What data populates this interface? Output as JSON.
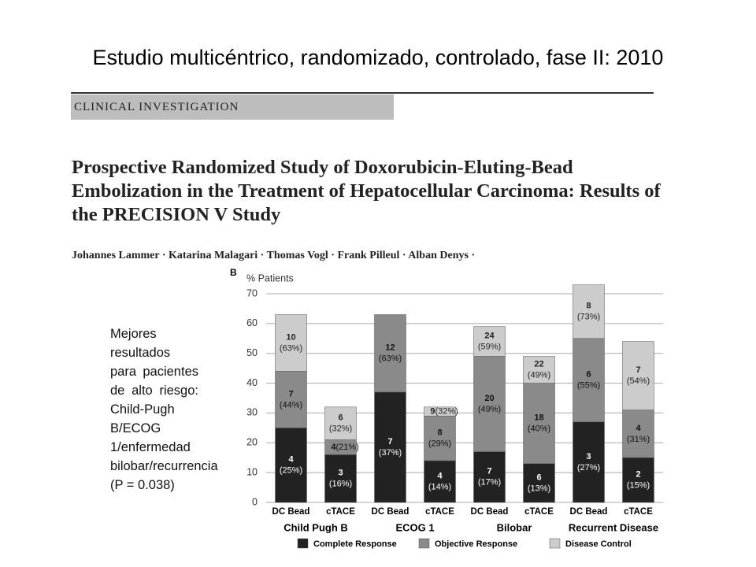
{
  "slide_title": "Estudio multicéntrico, randomizado, controlado, fase II: 2010",
  "paper": {
    "kicker": "CLINICAL INVESTIGATION",
    "title": "Prospective Randomized Study of Doxorubicin-Eluting-Bead Embolization in the Treatment of Hepatocellular Carcinoma: Results of the PRECISION V Study",
    "authors": "Johannes Lammer · Katarina Malagari · Thomas Vogl · Frank Pilleul · Alban Denys ·"
  },
  "note": "Mejores resultados para pacientes de alto riesgo: Child-Pugh B/ECOG 1/enfermedad bilobar/recurrencia (P = 0.038)",
  "chart_data": {
    "type": "stacked_bar",
    "panel_label": "B",
    "ylabel": "% Patients",
    "categories": [
      "DC Bead",
      "cTACE",
      "DC Bead",
      "cTACE",
      "DC Bead",
      "cTACE",
      "DC Bead",
      "cTACE"
    ],
    "group_labels": [
      "Child Pugh B",
      "ECOG 1",
      "Bilobar",
      "Recurrent Disease"
    ],
    "ylim": [
      0,
      70
    ],
    "yticks": [
      0,
      10,
      20,
      30,
      40,
      50,
      60,
      70
    ],
    "grid": true,
    "series": [
      {
        "name": "Complete Response",
        "color": "#222222",
        "values": [
          25,
          16,
          37,
          14,
          17,
          13,
          27,
          15
        ],
        "counts": [
          4,
          3,
          7,
          4,
          7,
          6,
          3,
          2
        ],
        "percent_labels": [
          "(25%)",
          "(16%)",
          "(37%)",
          "(14%)",
          "(17%)",
          "(13%)",
          "(27%)",
          "(15%)"
        ]
      },
      {
        "name": "Objective Response",
        "color": "#8a8a8a",
        "values": [
          19,
          5,
          26,
          15,
          32,
          27,
          28,
          16
        ],
        "counts": [
          7,
          4,
          12,
          8,
          20,
          18,
          6,
          4
        ],
        "percent_labels": [
          "(44%)",
          "(21%)",
          "(63%)",
          "(29%)",
          "(49%)",
          "(40%)",
          "(55%)",
          "(31%)"
        ]
      },
      {
        "name": "Disease Control",
        "color": "#cccccc",
        "values": [
          19,
          11,
          null,
          3,
          10,
          9,
          18,
          23
        ],
        "counts": [
          10,
          6,
          null,
          9,
          24,
          22,
          8,
          7
        ],
        "percent_labels": [
          "(63%)",
          "(32%)",
          null,
          "(32%)",
          "(59%)",
          "(49%)",
          "(73%)",
          "(54%)"
        ]
      }
    ]
  }
}
